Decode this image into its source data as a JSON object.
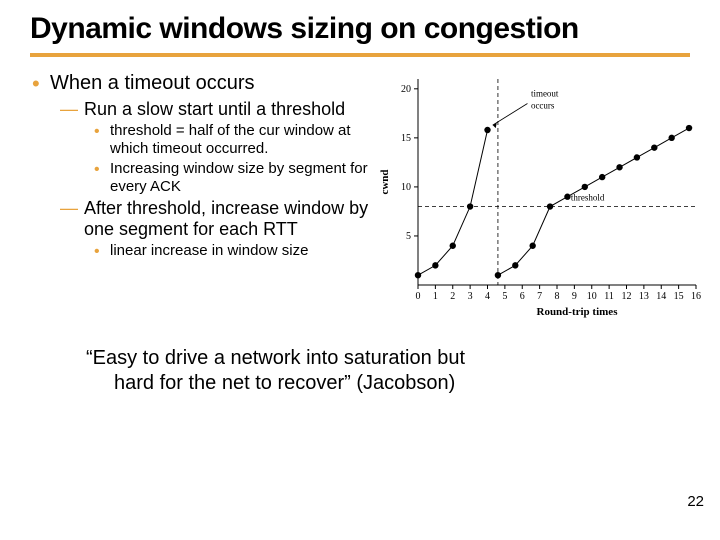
{
  "title": "Dynamic windows sizing on congestion",
  "bullets": {
    "l1_a": "When a timeout occurs",
    "l2_a": "Run a slow start until a threshold",
    "l3_a": "threshold = half of the cur window at which timeout occurred.",
    "l3_b": "Increasing window size by segment for every ACK",
    "l2_b": "After threshold, increase window by one segment for each RTT",
    "l3_c": "linear increase in window size"
  },
  "quote": "“Easy to drive a network into saturation but",
  "quote_line2": "hard for the net to recover” (Jacobson)",
  "pagenum": "22",
  "chart": {
    "type": "line",
    "xlabel": "Round-trip times",
    "ylabel": "cwnd",
    "xlim": [
      0,
      16
    ],
    "ylim": [
      0,
      21
    ],
    "yticks": [
      5,
      10,
      15,
      20
    ],
    "xticks": [
      0,
      1,
      2,
      3,
      4,
      5,
      6,
      7,
      8,
      9,
      10,
      11,
      12,
      13,
      14,
      15,
      16
    ],
    "threshold_y": 8,
    "timeout_x": 4.6,
    "series": [
      {
        "points": [
          [
            0,
            1
          ],
          [
            1,
            2
          ],
          [
            2,
            4
          ],
          [
            3,
            8
          ],
          [
            4,
            15.8
          ]
        ]
      },
      {
        "points": [
          [
            4.6,
            1
          ],
          [
            5.6,
            2
          ],
          [
            6.6,
            4
          ],
          [
            7.6,
            8
          ],
          [
            8.6,
            9
          ],
          [
            9.6,
            10
          ],
          [
            10.6,
            11
          ],
          [
            11.6,
            12
          ],
          [
            12.6,
            13
          ],
          [
            13.6,
            14
          ],
          [
            14.6,
            15
          ],
          [
            15.6,
            16
          ]
        ]
      }
    ],
    "annotations": {
      "timeout_label": "timeout occurs",
      "threshold_label": "threshold"
    },
    "colors": {
      "axis": "#000000",
      "line": "#000000",
      "marker_fill": "#000000",
      "dash": "#000000",
      "background": "#ffffff"
    },
    "font_size": 10,
    "marker_size": 3.2,
    "line_width": 1
  }
}
